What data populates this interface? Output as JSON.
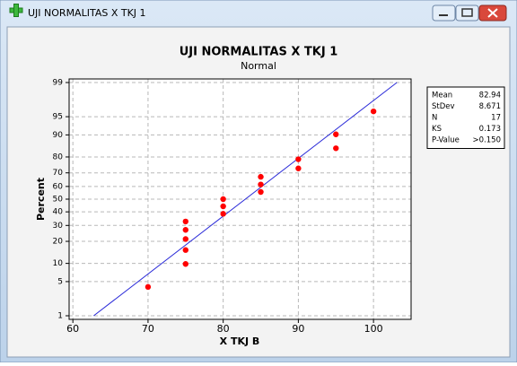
{
  "window": {
    "title": "UJI NORMALITAS X TKJ 1"
  },
  "chart_data": {
    "type": "probability",
    "title": "UJI NORMALITAS X TKJ 1",
    "subtitle": "Normal",
    "xlabel": "X TKJ B",
    "ylabel": "Percent",
    "x": [
      70,
      75,
      75,
      75,
      75,
      75,
      80,
      80,
      80,
      85,
      85,
      85,
      90,
      90,
      95,
      95,
      100
    ],
    "y": [
      4.0,
      9.8,
      15.5,
      21.3,
      27.0,
      32.8,
      38.5,
      44.3,
      50.0,
      55.7,
      61.5,
      67.2,
      73.0,
      78.7,
      84.5,
      90.2,
      96.0
    ],
    "color": "#ff0000",
    "line_color": "#2a2ad8",
    "xlim": [
      59.5,
      105
    ],
    "xticks": [
      60,
      70,
      80,
      90,
      100
    ],
    "ylim": [
      1,
      99
    ],
    "yticks": [
      1,
      5,
      10,
      20,
      30,
      40,
      50,
      60,
      70,
      80,
      90,
      95,
      99
    ],
    "grid": true,
    "stats": {
      "labels": [
        "Mean",
        "StDev",
        "N",
        "KS",
        "P-Value"
      ],
      "values": [
        82.94,
        8.671,
        17,
        0.173,
        ">0.150"
      ]
    }
  }
}
